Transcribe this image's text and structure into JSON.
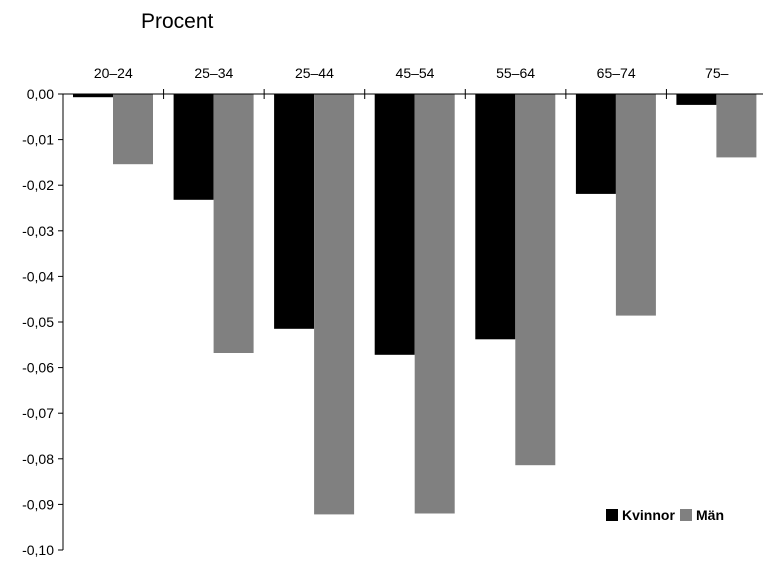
{
  "chart_data": {
    "type": "bar",
    "unit_label": "Procent",
    "categories": [
      "20–24",
      "25–34",
      "25–44",
      "45–54",
      "55–64",
      "65–74",
      "75–"
    ],
    "series": [
      {
        "name": "Kvinnor",
        "color": "#000000",
        "values": [
          -0.0007,
          -0.0232,
          -0.0515,
          -0.0572,
          -0.0538,
          -0.0219,
          -0.0024
        ]
      },
      {
        "name": "Män",
        "color": "#808080",
        "values": [
          -0.0154,
          -0.0568,
          -0.0922,
          -0.092,
          -0.0814,
          -0.0486,
          -0.0139
        ]
      }
    ],
    "ylim": [
      -0.1,
      0.0
    ],
    "yticks": [
      0.0,
      -0.01,
      -0.02,
      -0.03,
      -0.04,
      -0.05,
      -0.06,
      -0.07,
      -0.08,
      -0.09,
      -0.1
    ],
    "ytick_labels": [
      "0,00",
      "-0,01",
      "-0,02",
      "-0,03",
      "-0,04",
      "-0,05",
      "-0,06",
      "-0,07",
      "-0,08",
      "-0,09",
      "-0,10"
    ],
    "xaxis_position": "top",
    "grid": false,
    "legend_position": "bottom-right"
  }
}
